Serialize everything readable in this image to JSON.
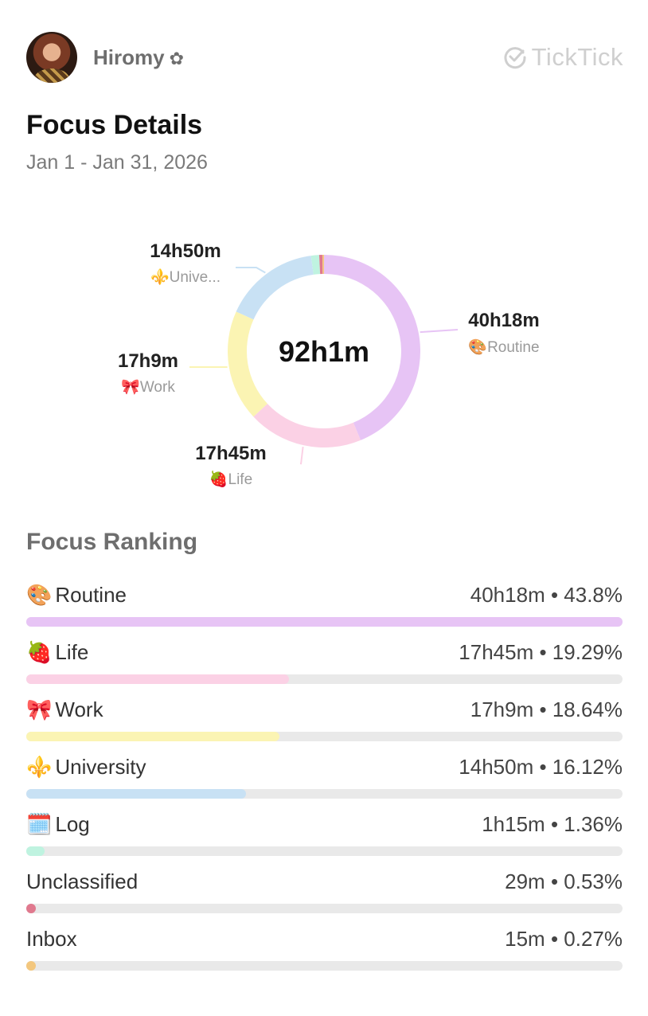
{
  "header": {
    "username": "Hiromy",
    "flower_icon": "✿",
    "brand": "TickTick"
  },
  "title": "Focus Details",
  "date_range": "Jan 1 - Jan 31, 2026",
  "chart_data": {
    "type": "pie",
    "center_label": "92h1m",
    "slices": [
      {
        "name": "Routine",
        "emoji": "🎨",
        "duration": "40h18m",
        "label": "Routine",
        "percent": 43.8,
        "color": "#e7c4f5"
      },
      {
        "name": "Life",
        "emoji": "🍓",
        "duration": "17h45m",
        "label": "Life",
        "percent": 19.29,
        "color": "#fbd1e5"
      },
      {
        "name": "Work",
        "emoji": "🎀",
        "duration": "17h9m",
        "label": "Work",
        "percent": 18.64,
        "color": "#fbf4b3"
      },
      {
        "name": "University",
        "emoji": "⚜️",
        "duration": "14h50m",
        "label": "Unive...",
        "percent": 16.12,
        "color": "#c8e1f4"
      },
      {
        "name": "Log",
        "emoji": "🗓️",
        "duration": "1h15m",
        "label": "",
        "percent": 1.36,
        "color": "#bff3e0"
      },
      {
        "name": "Unclassified",
        "emoji": "",
        "duration": "29m",
        "label": "",
        "percent": 0.53,
        "color": "#e0798e"
      },
      {
        "name": "Inbox",
        "emoji": "",
        "duration": "15m",
        "label": "",
        "percent": 0.27,
        "color": "#f3c77e"
      }
    ]
  },
  "ranking": {
    "title": "Focus Ranking",
    "items": [
      {
        "emoji": "🎨",
        "name": "Routine",
        "value": "40h18m • 43.8%",
        "fraction": 1.0,
        "color": "#e7c4f5"
      },
      {
        "emoji": "🍓",
        "name": "Life",
        "value": "17h45m • 19.29%",
        "fraction": 0.44,
        "color": "#fbd1e5"
      },
      {
        "emoji": "🎀",
        "name": "Work",
        "value": "17h9m • 18.64%",
        "fraction": 0.425,
        "color": "#fbf4b3"
      },
      {
        "emoji": "⚜️",
        "name": "University",
        "value": "14h50m • 16.12%",
        "fraction": 0.368,
        "color": "#c8e1f4"
      },
      {
        "emoji": "🗓️",
        "name": "Log",
        "value": "1h15m • 1.36%",
        "fraction": 0.031,
        "color": "#bff3e0"
      },
      {
        "emoji": "",
        "name": "Unclassified",
        "value": "29m • 0.53%",
        "fraction": 0.012,
        "color": "#e0798e"
      },
      {
        "emoji": "",
        "name": "Inbox",
        "value": "15m • 0.27%",
        "fraction": 0.006,
        "color": "#f3c77e"
      }
    ]
  }
}
